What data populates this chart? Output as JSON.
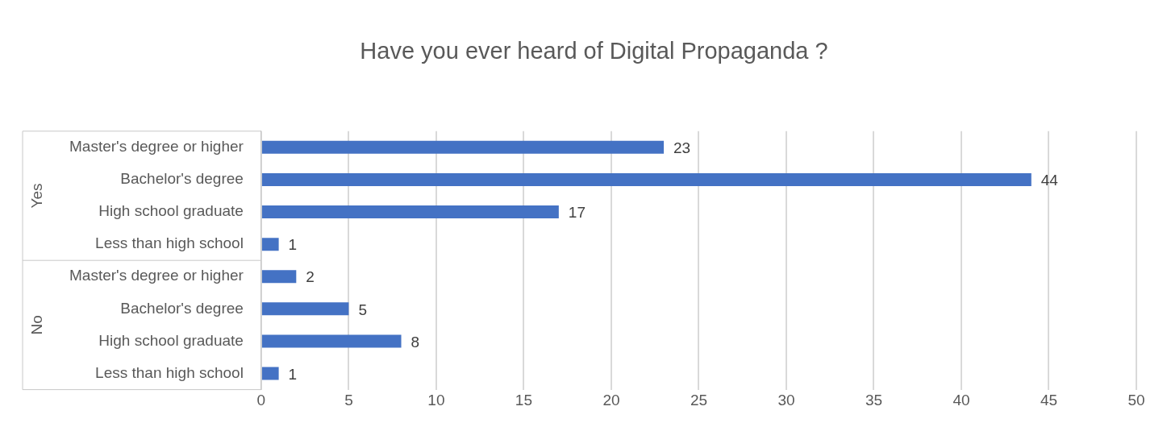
{
  "chart_data": {
    "type": "bar",
    "orientation": "horizontal",
    "title": "Have you ever heard of Digital Propaganda ?",
    "categories": [
      "Master's degree or higher",
      "Bachelor's degree",
      "High school graduate",
      "Less than high school",
      "Master's degree or higher",
      "Bachelor's degree",
      "High school graduate",
      "Less than high school"
    ],
    "values": [
      23,
      44,
      17,
      1,
      2,
      5,
      8,
      1
    ],
    "color": "#4472c4",
    "xlim": [
      0,
      50
    ],
    "xticks": [
      0,
      5,
      10,
      15,
      20,
      25,
      30,
      35,
      40,
      45,
      50
    ],
    "grid": "x",
    "data_labels": true,
    "annotations": [
      "Yes",
      "No"
    ]
  }
}
